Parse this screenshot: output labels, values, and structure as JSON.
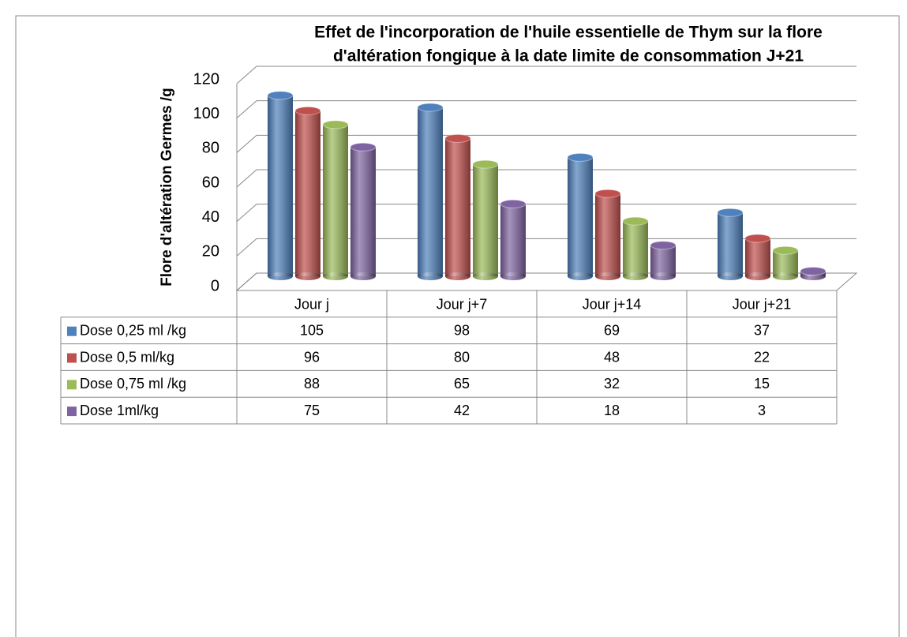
{
  "chart_data": {
    "type": "bar3d",
    "title": [
      "Effet de l'incorporation de l'huile essentielle de Thym sur la flore",
      "d'altération fongique à la date limite de consommation J+21"
    ],
    "y_label": "Flore d'altération Germes /g",
    "categories": [
      "Jour j",
      "Jour j+7",
      "Jour j+14",
      "Jour j+21"
    ],
    "series": [
      {
        "name": "Dose 0,25 ml /kg",
        "color": "#4f81bd",
        "values": [
          105,
          98,
          69,
          37
        ]
      },
      {
        "name": "Dose 0,5 ml/kg",
        "color": "#c0504d",
        "values": [
          96,
          80,
          48,
          22
        ]
      },
      {
        "name": "Dose 0,75 ml /kg",
        "color": "#9bbb59",
        "values": [
          88,
          65,
          32,
          15
        ]
      },
      {
        "name": "Dose 1ml/kg",
        "color": "#8064a2",
        "values": [
          75,
          42,
          18,
          3
        ]
      }
    ],
    "ylim": [
      0,
      120
    ],
    "yticks": [
      0,
      20,
      40,
      60,
      80,
      100,
      120
    ],
    "grid": true,
    "data_table": true
  }
}
